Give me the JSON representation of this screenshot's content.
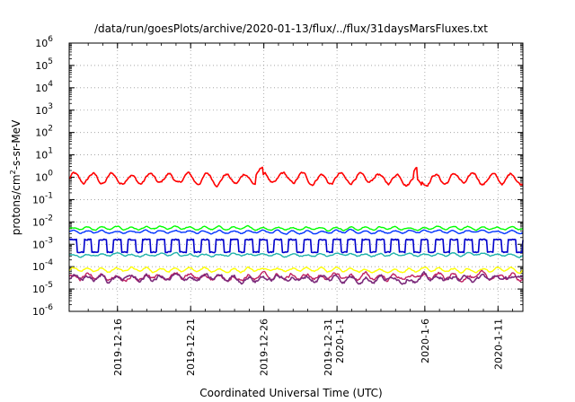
{
  "chart_data": {
    "type": "line",
    "title": "/data/run/goesPlots/archive/2020-01-13/flux/../flux/31daysMarsFluxes.txt",
    "xlabel": "Coordinated Universal Time (UTC)",
    "ylabel": "protons/cm²-s-sr-MeV",
    "ylabel_parts": [
      "protons/cm",
      "2",
      "-s-sr-MeV"
    ],
    "yscale": "log",
    "ylim": [
      1e-06,
      1000000.0
    ],
    "xlim": [
      "2019-12-13",
      "2020-01-14"
    ],
    "grid": "dotted",
    "y_ticks": [
      {
        "exp": "-6"
      },
      {
        "exp": "-5"
      },
      {
        "exp": "-4"
      },
      {
        "exp": "-3"
      },
      {
        "exp": "-2"
      },
      {
        "exp": "-1"
      },
      {
        "exp": "0"
      },
      {
        "exp": "1"
      },
      {
        "exp": "2"
      },
      {
        "exp": "3"
      },
      {
        "exp": "4"
      },
      {
        "exp": "5"
      },
      {
        "exp": "6"
      }
    ],
    "y_tick_base": "10",
    "x_ticks": [
      {
        "day": 3.3,
        "lines": [
          "2019-12-16"
        ]
      },
      {
        "day": 8.3,
        "lines": [
          "2019-12-21"
        ]
      },
      {
        "day": 13.3,
        "lines": [
          "2019-12-26"
        ]
      },
      {
        "day": 18.3,
        "lines": [
          "2019-12-31",
          "2020-1-1"
        ]
      },
      {
        "day": 24.3,
        "lines": [
          "2020-1-6"
        ]
      },
      {
        "day": 29.3,
        "lines": [
          "2020-1-11"
        ]
      }
    ],
    "series": [
      {
        "color": "#ff0000",
        "base": 0.85,
        "amp": 0.22,
        "noise": 0.1,
        "period": 1.3
      },
      {
        "color": "#00ff00",
        "base": 0.0052,
        "amp": 0.06,
        "noise": 0.04,
        "period": 1.0
      },
      {
        "color": "#0033ff",
        "base": 0.0036,
        "amp": 0.06,
        "noise": 0.04,
        "period": 1.0
      },
      {
        "color": "#0000cc",
        "base": 0.00085,
        "amp": 0.28,
        "noise": 0.05,
        "period": 1.0
      },
      {
        "color": "#20b2aa",
        "base": 0.00033,
        "amp": 0.05,
        "noise": 0.05,
        "period": 1.0
      },
      {
        "color": "#ffff00",
        "base": 7e-05,
        "amp": 0.08,
        "noise": 0.06,
        "period": 1.0
      },
      {
        "color": "#c02060",
        "base": 3.5e-05,
        "amp": 0.1,
        "noise": 0.12,
        "period": 1.0
      },
      {
        "color": "#7b2a7b",
        "base": 3e-05,
        "amp": 0.1,
        "noise": 0.14,
        "period": 1.0
      }
    ]
  }
}
